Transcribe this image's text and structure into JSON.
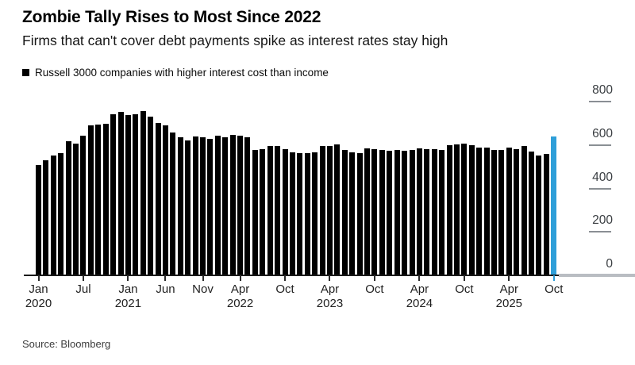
{
  "header": {
    "title": "Zombie Tally Rises to Most Since 2022",
    "subtitle": "Firms that can't cover debt payments spike as interest rates stay high"
  },
  "legend": {
    "label": "Russell 3000 companies with higher interest cost than income"
  },
  "source": "Source: Bloomberg",
  "chart_data": {
    "type": "bar",
    "title": "Zombie Tally Rises to Most Since 2022",
    "series_name": "Russell 3000 companies with higher interest cost than income",
    "frequency": "monthly",
    "start_month": "Jan 2020",
    "end_month": "Oct 2025",
    "values": [
      508,
      530,
      551,
      562,
      616,
      608,
      643,
      690,
      693,
      699,
      742,
      751,
      738,
      741,
      756,
      729,
      701,
      690,
      659,
      634,
      622,
      640,
      634,
      628,
      644,
      636,
      647,
      643,
      634,
      576,
      580,
      597,
      594,
      580,
      567,
      564,
      564,
      568,
      596,
      594,
      604,
      576,
      567,
      564,
      583,
      580,
      576,
      573,
      576,
      574,
      578,
      585,
      582,
      580,
      576,
      598,
      604,
      608,
      600,
      587,
      589,
      578,
      576,
      588,
      580,
      594,
      570,
      550,
      560,
      640
    ],
    "highlight_index": 69,
    "bar_color": "#000000",
    "highlight_color": "#2f9fd9",
    "ylim": [
      0,
      800
    ],
    "y_ticks": [
      0,
      200,
      400,
      600,
      800
    ],
    "y_axis_side": "right",
    "grid": false,
    "legend_position": "top-left",
    "x_ticks": [
      {
        "month_index": 0,
        "label": "Jan",
        "year": "2020"
      },
      {
        "month_index": 6,
        "label": "Jul"
      },
      {
        "month_index": 12,
        "label": "Jan",
        "year": "2021"
      },
      {
        "month_index": 17,
        "label": "Jun"
      },
      {
        "month_index": 22,
        "label": "Nov"
      },
      {
        "month_index": 27,
        "label": "Apr",
        "year": "2022"
      },
      {
        "month_index": 33,
        "label": "Oct"
      },
      {
        "month_index": 39,
        "label": "Apr",
        "year": "2023"
      },
      {
        "month_index": 45,
        "label": "Oct"
      },
      {
        "month_index": 51,
        "label": "Apr",
        "year": "2024"
      },
      {
        "month_index": 57,
        "label": "Oct"
      },
      {
        "month_index": 63,
        "label": "Apr",
        "year": "2025"
      },
      {
        "month_index": 69,
        "label": "Oct",
        "highlight": true
      }
    ]
  }
}
